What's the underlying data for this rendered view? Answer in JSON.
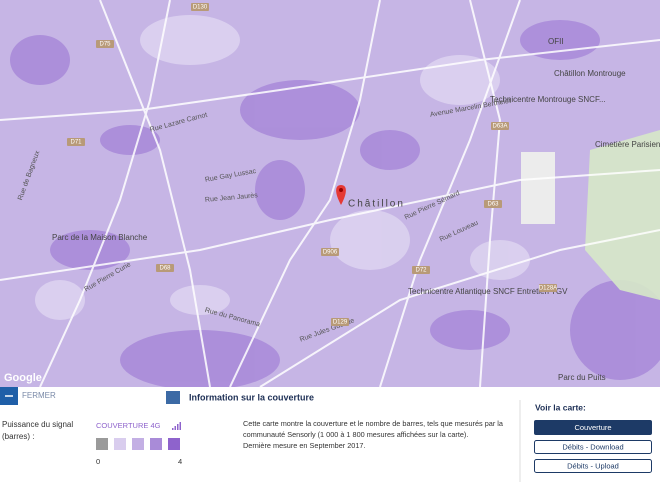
{
  "map": {
    "attribution": "Google",
    "places": [
      "Châtillon",
      "Parc de la Maison Blanche",
      "Cimetière Parisien de Bagneux",
      "Technicentre Atlantique SNCF Entretien TGV",
      "Technicentre Montrouge SNCF...",
      "Châtillon Montrouge",
      "OFII",
      "Parc du Puits"
    ],
    "streets": [
      "Rue Pierre Sémard",
      "Rue Louveau",
      "Avenue Marcelin Berthelot",
      "Rue Gay Lussac",
      "Rue Jean Jaurès",
      "Rue Lazare Carnot",
      "Rue du Panorama",
      "Rue Pierre Curie",
      "Rue de Bagneux",
      "Rue Jules Guesde"
    ],
    "roads": [
      "D130",
      "D71",
      "D906",
      "D63",
      "D63A",
      "D72",
      "D128A",
      "D68",
      "D75",
      "D129"
    ]
  },
  "panel": {
    "close": "FERMER",
    "title": "Information sur la couverture",
    "signal_label": "Puissance du signal (barres) :",
    "legend": {
      "title": "COUVERTURE 4G",
      "min": 0,
      "max": 4,
      "colors": [
        "#9a9a9a",
        "#d9cdee",
        "#c3afe4",
        "#a98bd8",
        "#8e63cc"
      ]
    },
    "description": [
      "Cette carte montre la couverture et le nombre de barres, tels que mesurés par la",
      "communauté Sensorly (1 000 à 1 800 mesures affichées sur la carte).",
      "Dernière mesure en September 2017."
    ],
    "view_title": "Voir la carte:",
    "buttons": [
      "Couverture",
      "Débits - Download",
      "Débits - Upload"
    ]
  }
}
